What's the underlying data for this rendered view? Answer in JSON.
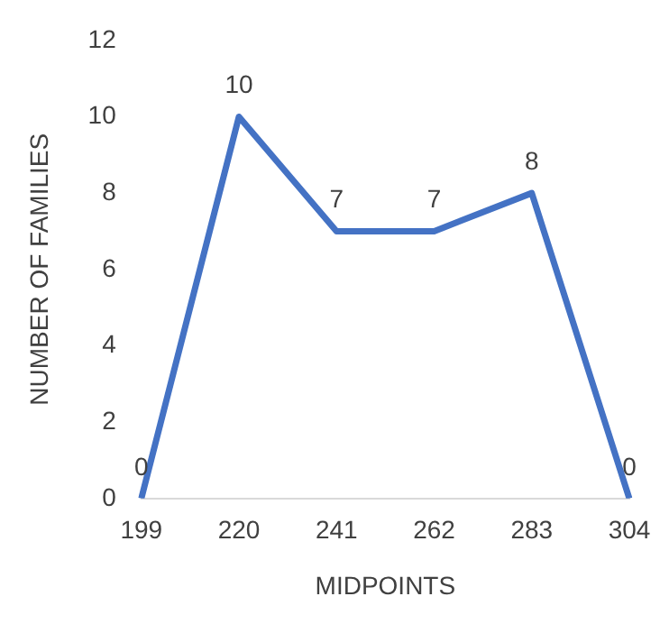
{
  "chart_data": {
    "type": "line",
    "xlabel": "MIDPOINTS",
    "ylabel": "NUMBER OF FAMILIES",
    "categories": [
      "199",
      "220",
      "241",
      "262",
      "283",
      "304"
    ],
    "series": [
      {
        "color": "#4472c4",
        "values": [
          0,
          10,
          7,
          7,
          8,
          0
        ]
      }
    ],
    "ylim": [
      0,
      12
    ],
    "yticks": [
      0,
      2,
      4,
      6,
      8,
      10,
      12
    ],
    "grid": false,
    "legend": false,
    "marker": "none",
    "line_style": "solid",
    "data_labels": true
  }
}
